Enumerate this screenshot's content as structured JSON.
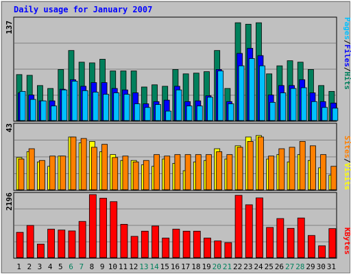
{
  "title": "Daily usage for January 2007",
  "colors": {
    "background": "#c0c0c0",
    "plot_bg": "#c0c0c0",
    "title": "#0000ff",
    "hits": "#00805c",
    "files": "#0000ff",
    "pages": "#00c0ff",
    "visits": "#ffff00",
    "sites": "#ff8000",
    "kbytes": "#ff0000",
    "weekend_label": "#00805c",
    "weekday_label": "#000000",
    "grid": "#808080"
  },
  "chart_data": [
    {
      "type": "bar",
      "title": "Daily usage for January 2007",
      "panel": "hits-files-pages",
      "ymax_label": "137",
      "ylim": [
        0,
        137
      ],
      "legend": [
        "Pages",
        "/",
        "Files",
        "/",
        "Hits"
      ],
      "categories": [
        "1",
        "2",
        "3",
        "4",
        "5",
        "6",
        "7",
        "8",
        "9",
        "10",
        "11",
        "12",
        "13",
        "14",
        "15",
        "16",
        "17",
        "18",
        "19",
        "20",
        "21",
        "22",
        "23",
        "24",
        "25",
        "26",
        "27",
        "28",
        "29",
        "30",
        "31"
      ],
      "weekend_days": [
        "6",
        "7",
        "13",
        "14",
        "20",
        "21",
        "27",
        "28"
      ],
      "series": [
        {
          "name": "Hits",
          "values": [
            63,
            62,
            48,
            44,
            70,
            96,
            80,
            79,
            84,
            68,
            68,
            68,
            46,
            49,
            47,
            70,
            64,
            65,
            67,
            96,
            44,
            134,
            132,
            134,
            64,
            75,
            82,
            80,
            70,
            48,
            40
          ]
        },
        {
          "name": "Files",
          "values": [
            38,
            35,
            27,
            27,
            43,
            56,
            47,
            52,
            52,
            44,
            42,
            38,
            23,
            26,
            28,
            47,
            26,
            27,
            34,
            70,
            26,
            92,
            99,
            89,
            35,
            48,
            48,
            56,
            38,
            26,
            24
          ]
        },
        {
          "name": "Pages",
          "values": [
            40,
            29,
            27,
            20,
            42,
            54,
            41,
            39,
            36,
            38,
            36,
            23,
            18,
            22,
            13,
            42,
            20,
            20,
            32,
            68,
            23,
            75,
            85,
            75,
            25,
            38,
            44,
            45,
            26,
            18,
            17
          ]
        }
      ]
    },
    {
      "type": "bar",
      "panel": "sites-visits",
      "ymax_label": "43",
      "ylim": [
        0,
        43
      ],
      "legend": [
        "Sites",
        "/",
        "Visits"
      ],
      "categories": [
        "1",
        "2",
        "3",
        "4",
        "5",
        "6",
        "7",
        "8",
        "9",
        "10",
        "11",
        "12",
        "13",
        "14",
        "15",
        "16",
        "17",
        "18",
        "19",
        "20",
        "21",
        "22",
        "23",
        "24",
        "25",
        "26",
        "27",
        "28",
        "29",
        "30",
        "31"
      ],
      "series": [
        {
          "name": "Visits",
          "values": [
            22,
            26,
            19,
            16,
            23,
            36,
            32,
            33,
            26,
            24,
            20,
            20,
            17,
            16,
            21,
            18,
            13,
            19,
            20,
            28,
            21,
            30,
            36,
            37,
            21,
            24,
            19,
            24,
            20,
            15,
            10
          ]
        },
        {
          "name": "Sites",
          "values": [
            21,
            28,
            20,
            23,
            23,
            36,
            35,
            29,
            31,
            22,
            23,
            19,
            20,
            24,
            23,
            24,
            24,
            24,
            24,
            26,
            24,
            29,
            33,
            36,
            23,
            28,
            29,
            33,
            30,
            24,
            16
          ]
        }
      ]
    },
    {
      "type": "bar",
      "panel": "kbytes",
      "ymax_label": "2196",
      "ylim": [
        0,
        2196
      ],
      "legend": [
        "KBytes"
      ],
      "categories": [
        "1",
        "2",
        "3",
        "4",
        "5",
        "6",
        "7",
        "8",
        "9",
        "10",
        "11",
        "12",
        "13",
        "14",
        "15",
        "16",
        "17",
        "18",
        "19",
        "20",
        "21",
        "22",
        "23",
        "24",
        "25",
        "26",
        "27",
        "28",
        "29",
        "30",
        "31"
      ],
      "series": [
        {
          "name": "KBytes",
          "values": [
            880,
            1120,
            470,
            990,
            960,
            930,
            1260,
            2196,
            2070,
            1950,
            1160,
            740,
            920,
            1100,
            680,
            990,
            920,
            920,
            680,
            580,
            520,
            2170,
            1840,
            2080,
            1050,
            1360,
            1020,
            1380,
            770,
            410,
            1010
          ]
        }
      ]
    }
  ]
}
